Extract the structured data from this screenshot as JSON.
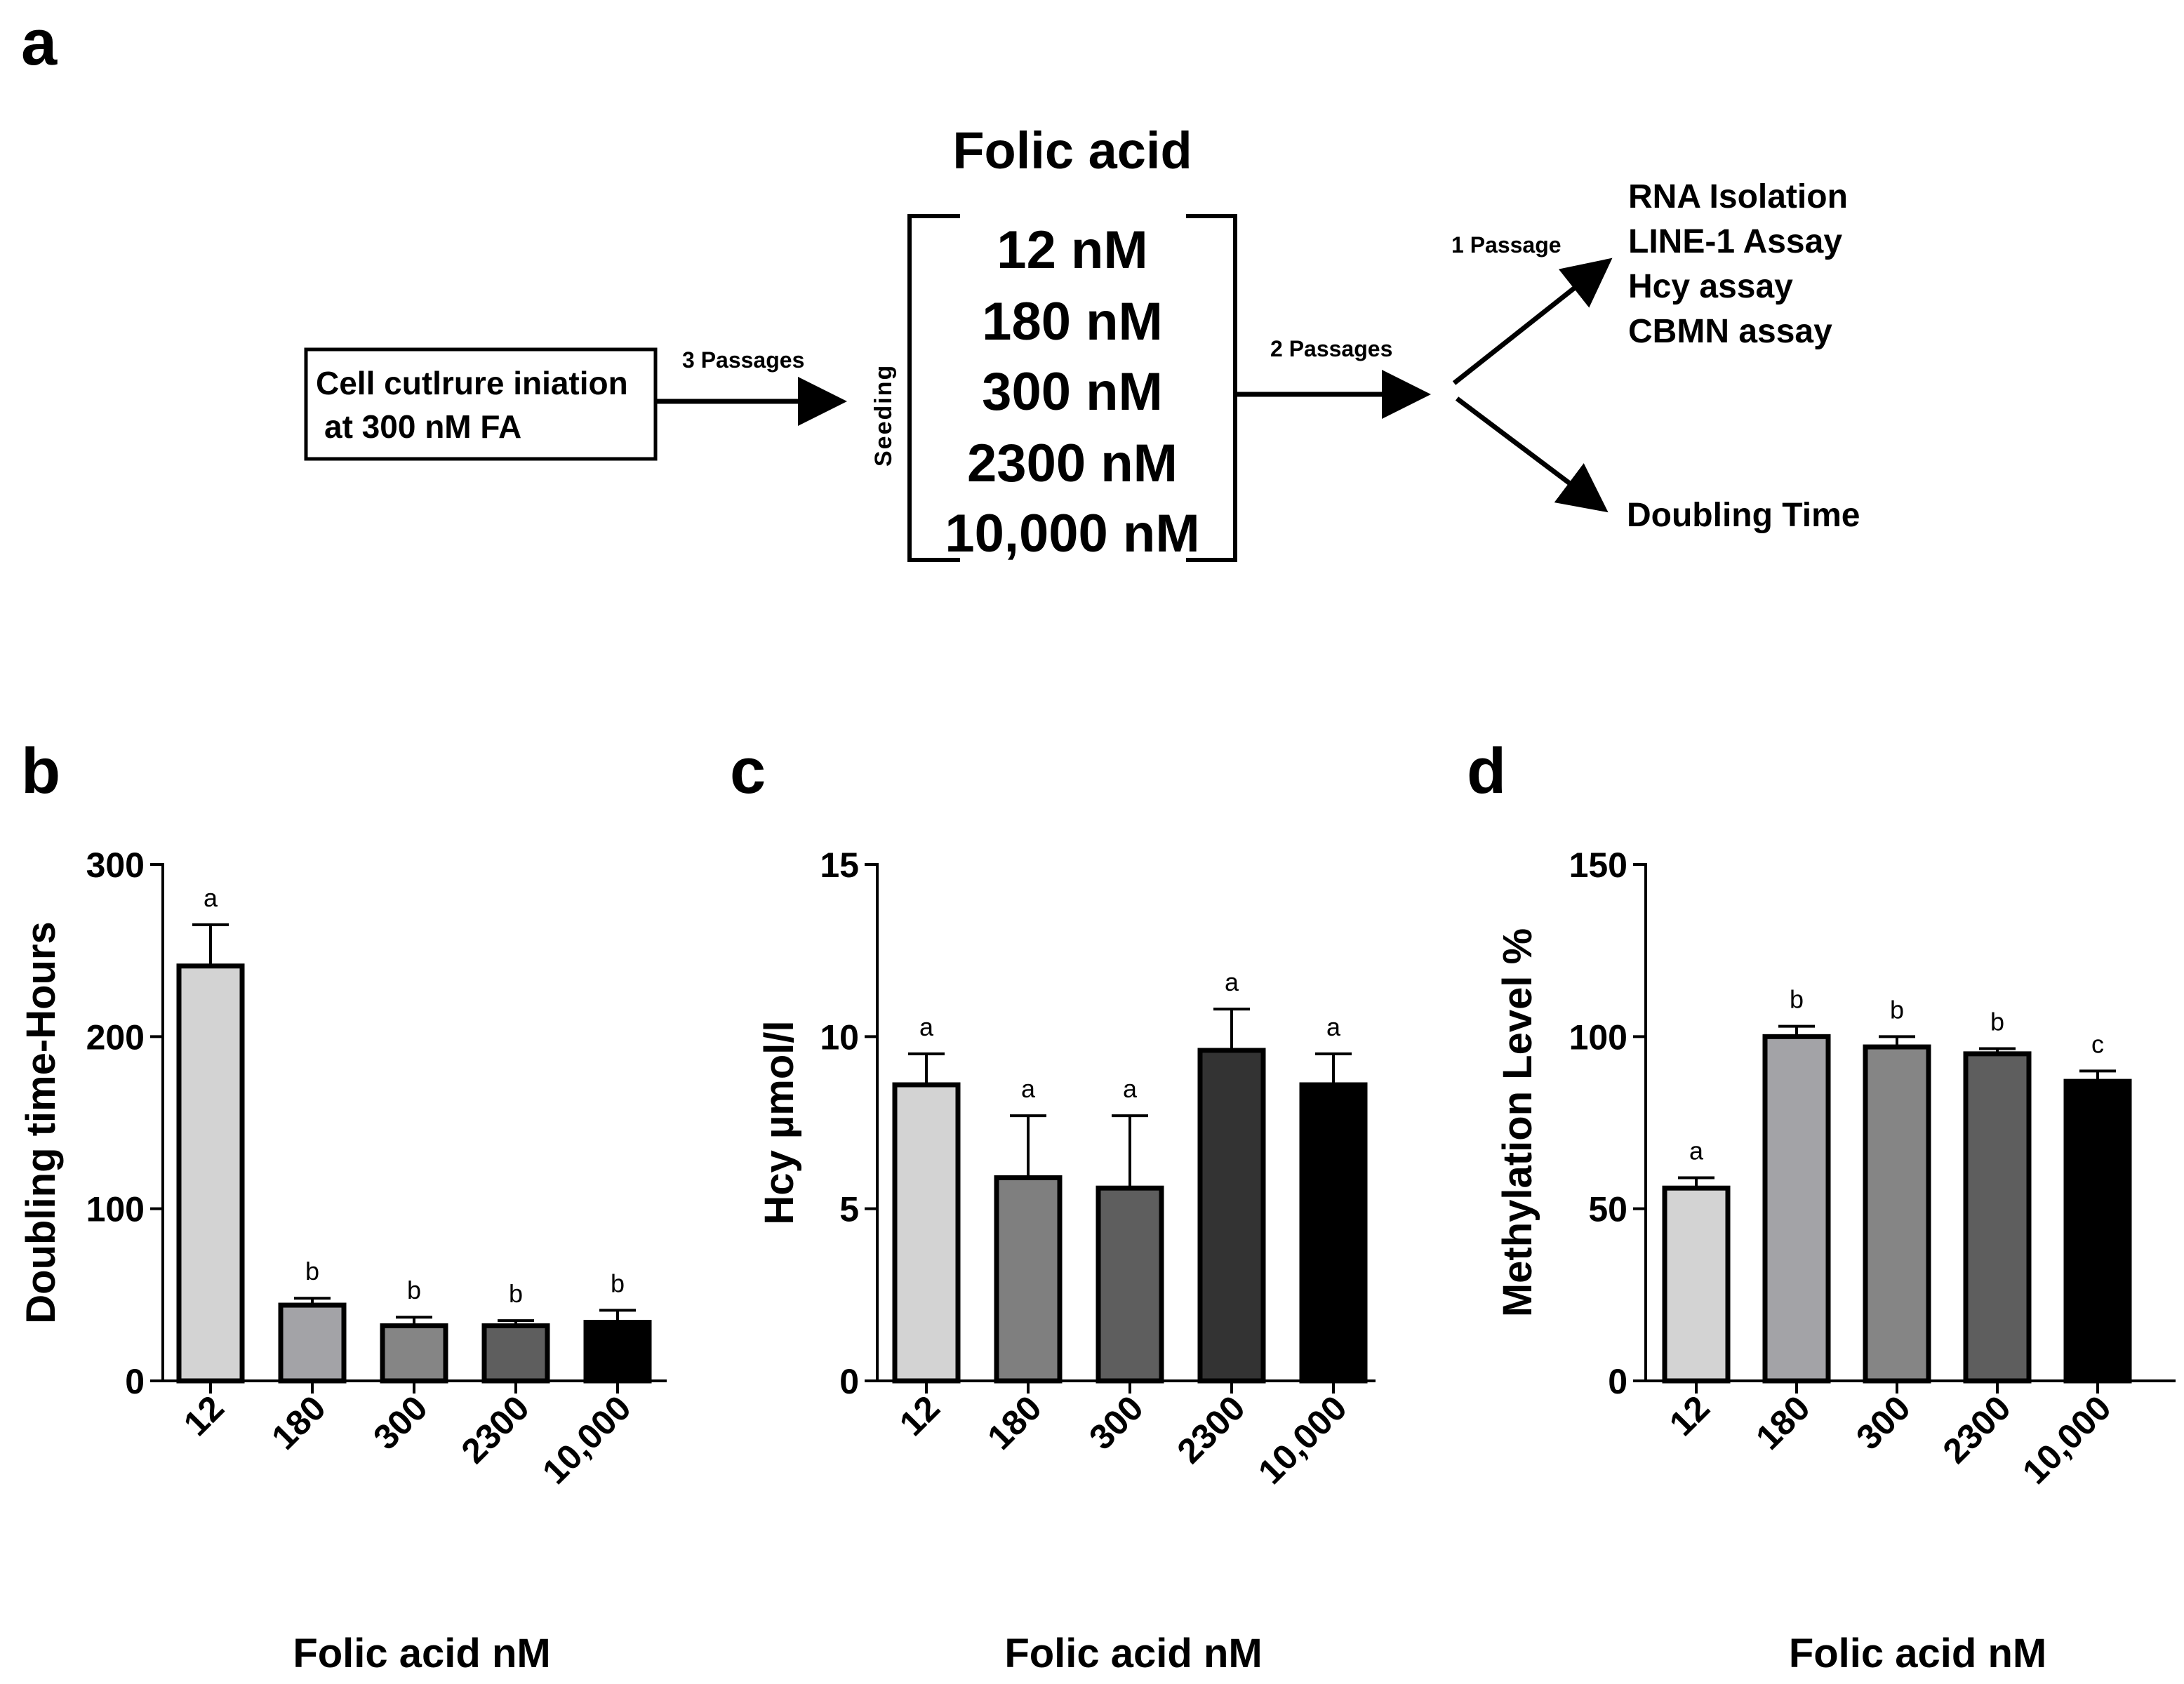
{
  "panel_labels": {
    "a": "a",
    "b": "b",
    "c": "c",
    "d": "d"
  },
  "schematic": {
    "start_box_line1": "Cell cutlrure iniation",
    "start_box_line2": "at 300 nM FA",
    "arrow1_label": "3 Passages",
    "seeding_label": "Seeding",
    "bracket_title": "Folic acid",
    "concentrations": [
      "12 nM",
      "180 nM",
      "300 nM",
      "2300 nM",
      "10,000 nM"
    ],
    "arrow2_label": "2 Passages",
    "arrow3_label": "1 Passage",
    "outputs_upper": [
      "RNA Isolation",
      "LINE-1 Assay",
      "Hcy assay",
      "CBMN assay"
    ],
    "output_lower": "Doubling Time"
  },
  "chart_data": [
    {
      "type": "bar",
      "panel": "b",
      "categories": [
        "12",
        "180",
        "300",
        "2300",
        "10,000"
      ],
      "values": [
        241,
        44,
        32,
        32,
        34
      ],
      "errors": [
        24,
        4,
        5,
        3,
        7
      ],
      "significance": [
        "a",
        "b",
        "b",
        "b",
        "b"
      ],
      "colors": [
        "#d3d3d3",
        "#a3a3a7",
        "#858585",
        "#5e5e5e",
        "#000000"
      ],
      "xlabel": "Folic acid nM",
      "ylabel": "Doubling time-Hours",
      "ylim": [
        0,
        300
      ],
      "yticks": [
        "0",
        "100",
        "200",
        "300"
      ]
    },
    {
      "type": "bar",
      "panel": "c",
      "categories": [
        "12",
        "180",
        "300",
        "2300",
        "10,000"
      ],
      "values": [
        8.6,
        5.9,
        5.6,
        9.6,
        8.6
      ],
      "errors": [
        0.9,
        1.8,
        2.1,
        1.2,
        0.9
      ],
      "significance": [
        "a",
        "a",
        "a",
        "a",
        "a"
      ],
      "colors": [
        "#d3d3d3",
        "#7f7f7f",
        "#5e5e5e",
        "#333333",
        "#000000"
      ],
      "xlabel": "Folic acid nM",
      "ylabel": "Hcy µmol/l",
      "ylim": [
        0,
        15
      ],
      "yticks": [
        "0",
        "5",
        "10",
        "15"
      ]
    },
    {
      "type": "bar",
      "panel": "d",
      "categories": [
        "12",
        "180",
        "300",
        "2300",
        "10,000"
      ],
      "values": [
        56,
        100,
        97,
        95,
        87
      ],
      "errors": [
        3,
        3,
        3,
        1.5,
        3
      ],
      "significance": [
        "a",
        "b",
        "b",
        "b",
        "c"
      ],
      "colors": [
        "#d3d3d3",
        "#a3a3a7",
        "#858585",
        "#5e5e5e",
        "#000000"
      ],
      "xlabel": "Folic acid nM",
      "ylabel": "Methylation Level %",
      "ylim": [
        0,
        150
      ],
      "yticks": [
        "0",
        "50",
        "100",
        "150"
      ]
    }
  ]
}
